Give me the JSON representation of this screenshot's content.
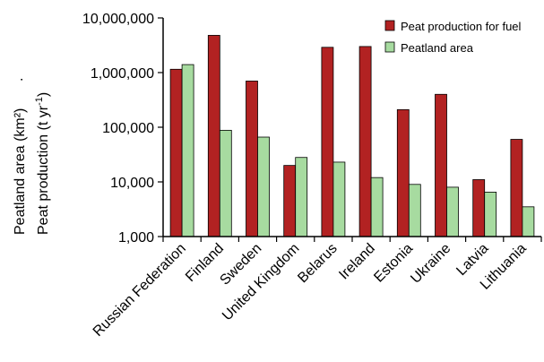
{
  "chart_data": {
    "type": "bar",
    "scale": "log",
    "categories": [
      "Russian Federation",
      "Finland",
      "Sweden",
      "United Kingdom",
      "Belarus",
      "Ireland",
      "Estonia",
      "Ukraine",
      "Latvia",
      "Lithuania"
    ],
    "series": [
      {
        "name": "Peat production for fuel",
        "color": "#b22222",
        "values": [
          1150000,
          4800000,
          700000,
          20000,
          2900000,
          3000000,
          210000,
          400000,
          11000,
          60000
        ]
      },
      {
        "name": "Peatland area",
        "color": "#a7dba0",
        "values": [
          1400000,
          88000,
          66000,
          28000,
          23000,
          12000,
          9000,
          8000,
          6500,
          3500
        ]
      }
    ],
    "ylabel_line1": "Peatland area (km²)",
    "ylabel_line1_dot": ".",
    "ylabel_line2_main": "Peat production (t yr",
    "ylabel_line2_sup": "-1",
    "ylabel_line2_end": ")",
    "ylim": [
      1000,
      10000000
    ],
    "yticks": [
      1000,
      10000,
      100000,
      1000000,
      10000000
    ],
    "ytick_labels": [
      "1,000",
      "10,000",
      "100,000",
      "1,000,000",
      "10,000,000"
    ],
    "legend_position": "top-right",
    "grid": false
  }
}
